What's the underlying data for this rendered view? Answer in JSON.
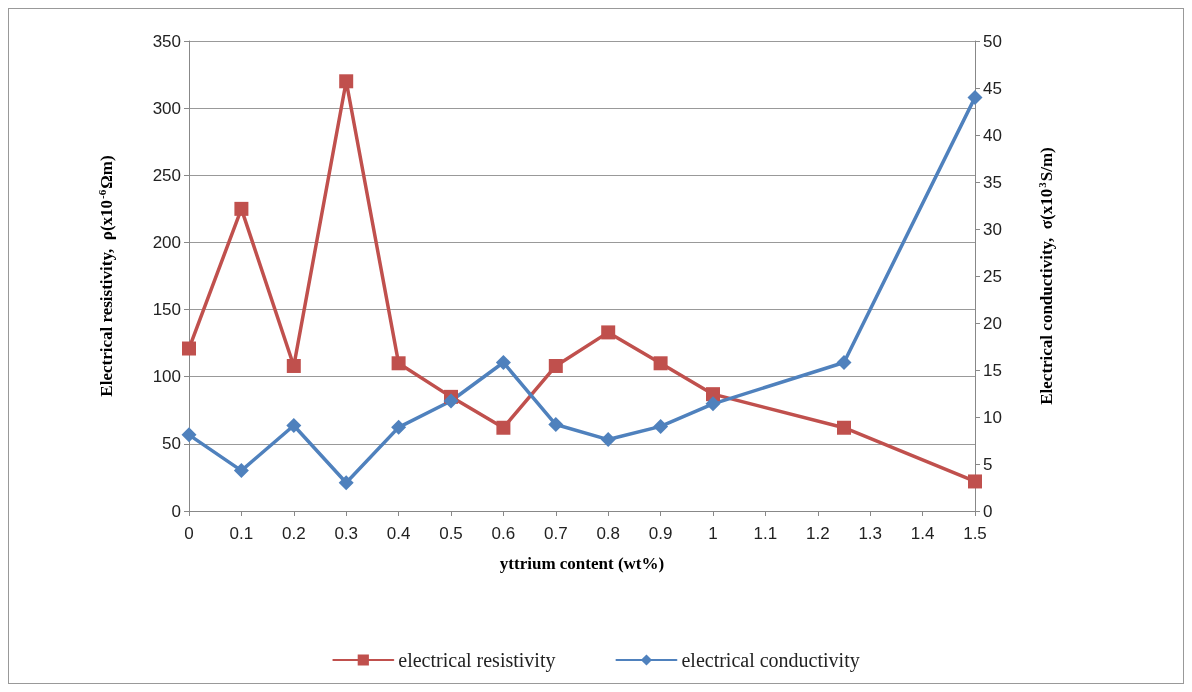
{
  "chart_data": {
    "type": "line",
    "xlabel": "yttrium content (wt%)",
    "ylabel": "Electrical resistivity,  ρ(x10$^{-6}$Ωm)",
    "y2label": "Electrical conductivity,  σ(x10$^{3}$S/m)",
    "x": [
      0,
      0.1,
      0.2,
      0.3,
      0.4,
      0.5,
      0.6,
      0.7,
      0.8,
      0.9,
      1,
      1.25,
      1.5
    ],
    "series": [
      {
        "name": "electrical resistivity",
        "color": "#c0504d",
        "marker": "square",
        "values": [
          121,
          225,
          108,
          320,
          110,
          85,
          62,
          108,
          133,
          110,
          87,
          62,
          22
        ]
      },
      {
        "name": "electrical conductivity",
        "color": "#4f81bd",
        "marker": "diamond",
        "axis": "y2",
        "values": [
          8.1,
          4.3,
          9.1,
          3.0,
          8.9,
          11.7,
          15.8,
          9.2,
          7.6,
          9.0,
          11.4,
          15.8,
          44.0
        ]
      }
    ],
    "xlim": [
      0,
      1.5
    ],
    "xticks": [
      0,
      0.1,
      0.2,
      0.3,
      0.4,
      0.5,
      0.6,
      0.7,
      0.8,
      0.9,
      1,
      1.1,
      1.2,
      1.3,
      1.4,
      1.5
    ],
    "ylim": [
      0,
      350
    ],
    "yticks": [
      0,
      50,
      100,
      150,
      200,
      250,
      300,
      350
    ],
    "y2lim": [
      0,
      50
    ],
    "y2ticks": [
      0,
      5,
      10,
      15,
      20,
      25,
      30,
      35,
      40,
      45,
      50
    ],
    "grid": "y",
    "legend": "bottom",
    "line_style": "solid"
  }
}
